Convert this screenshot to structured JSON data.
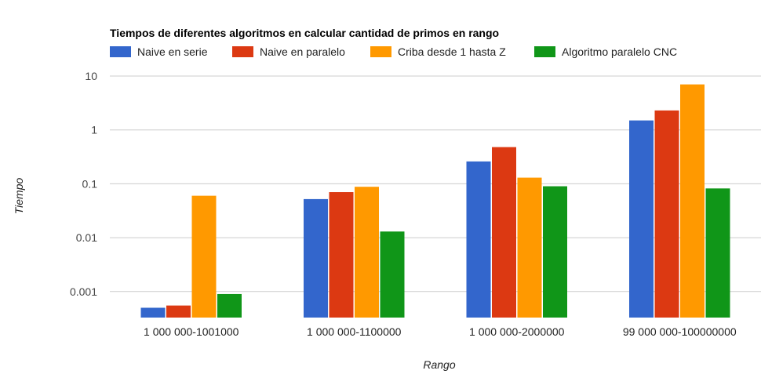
{
  "chart_data": {
    "type": "bar",
    "title": "Tiempos de diferentes algoritmos en calcular cantidad de primos en rango",
    "xlabel": "Rango",
    "ylabel": "Tiempo",
    "y_scale": "log",
    "ylim": [
      0.0002,
      10
    ],
    "y_ticks": [
      {
        "value": 10,
        "label": "10"
      },
      {
        "value": 1,
        "label": "1"
      },
      {
        "value": 0.1,
        "label": "0.1"
      },
      {
        "value": 0.01,
        "label": "0.01"
      },
      {
        "value": 0.001,
        "label": "0.001"
      }
    ],
    "grid": true,
    "legend_position": "top",
    "categories": [
      "1 000 000-1001000",
      "1 000 000-1100000",
      "1 000 000-2000000",
      "99 000 000-100000000"
    ],
    "series": [
      {
        "name": "Naive en serie",
        "color": "#3366cc",
        "values": [
          0.0005,
          0.052,
          0.26,
          1.5
        ]
      },
      {
        "name": "Naive en paralelo",
        "color": "#dc3912",
        "values": [
          0.00055,
          0.07,
          0.48,
          2.3
        ]
      },
      {
        "name": "Criba desde 1 hasta Z",
        "color": "#ff9900",
        "values": [
          0.06,
          0.088,
          0.13,
          7.0
        ]
      },
      {
        "name": "Algoritmo paralelo CNC",
        "color": "#109618",
        "values": [
          0.0009,
          0.013,
          0.09,
          0.082
        ]
      }
    ]
  }
}
